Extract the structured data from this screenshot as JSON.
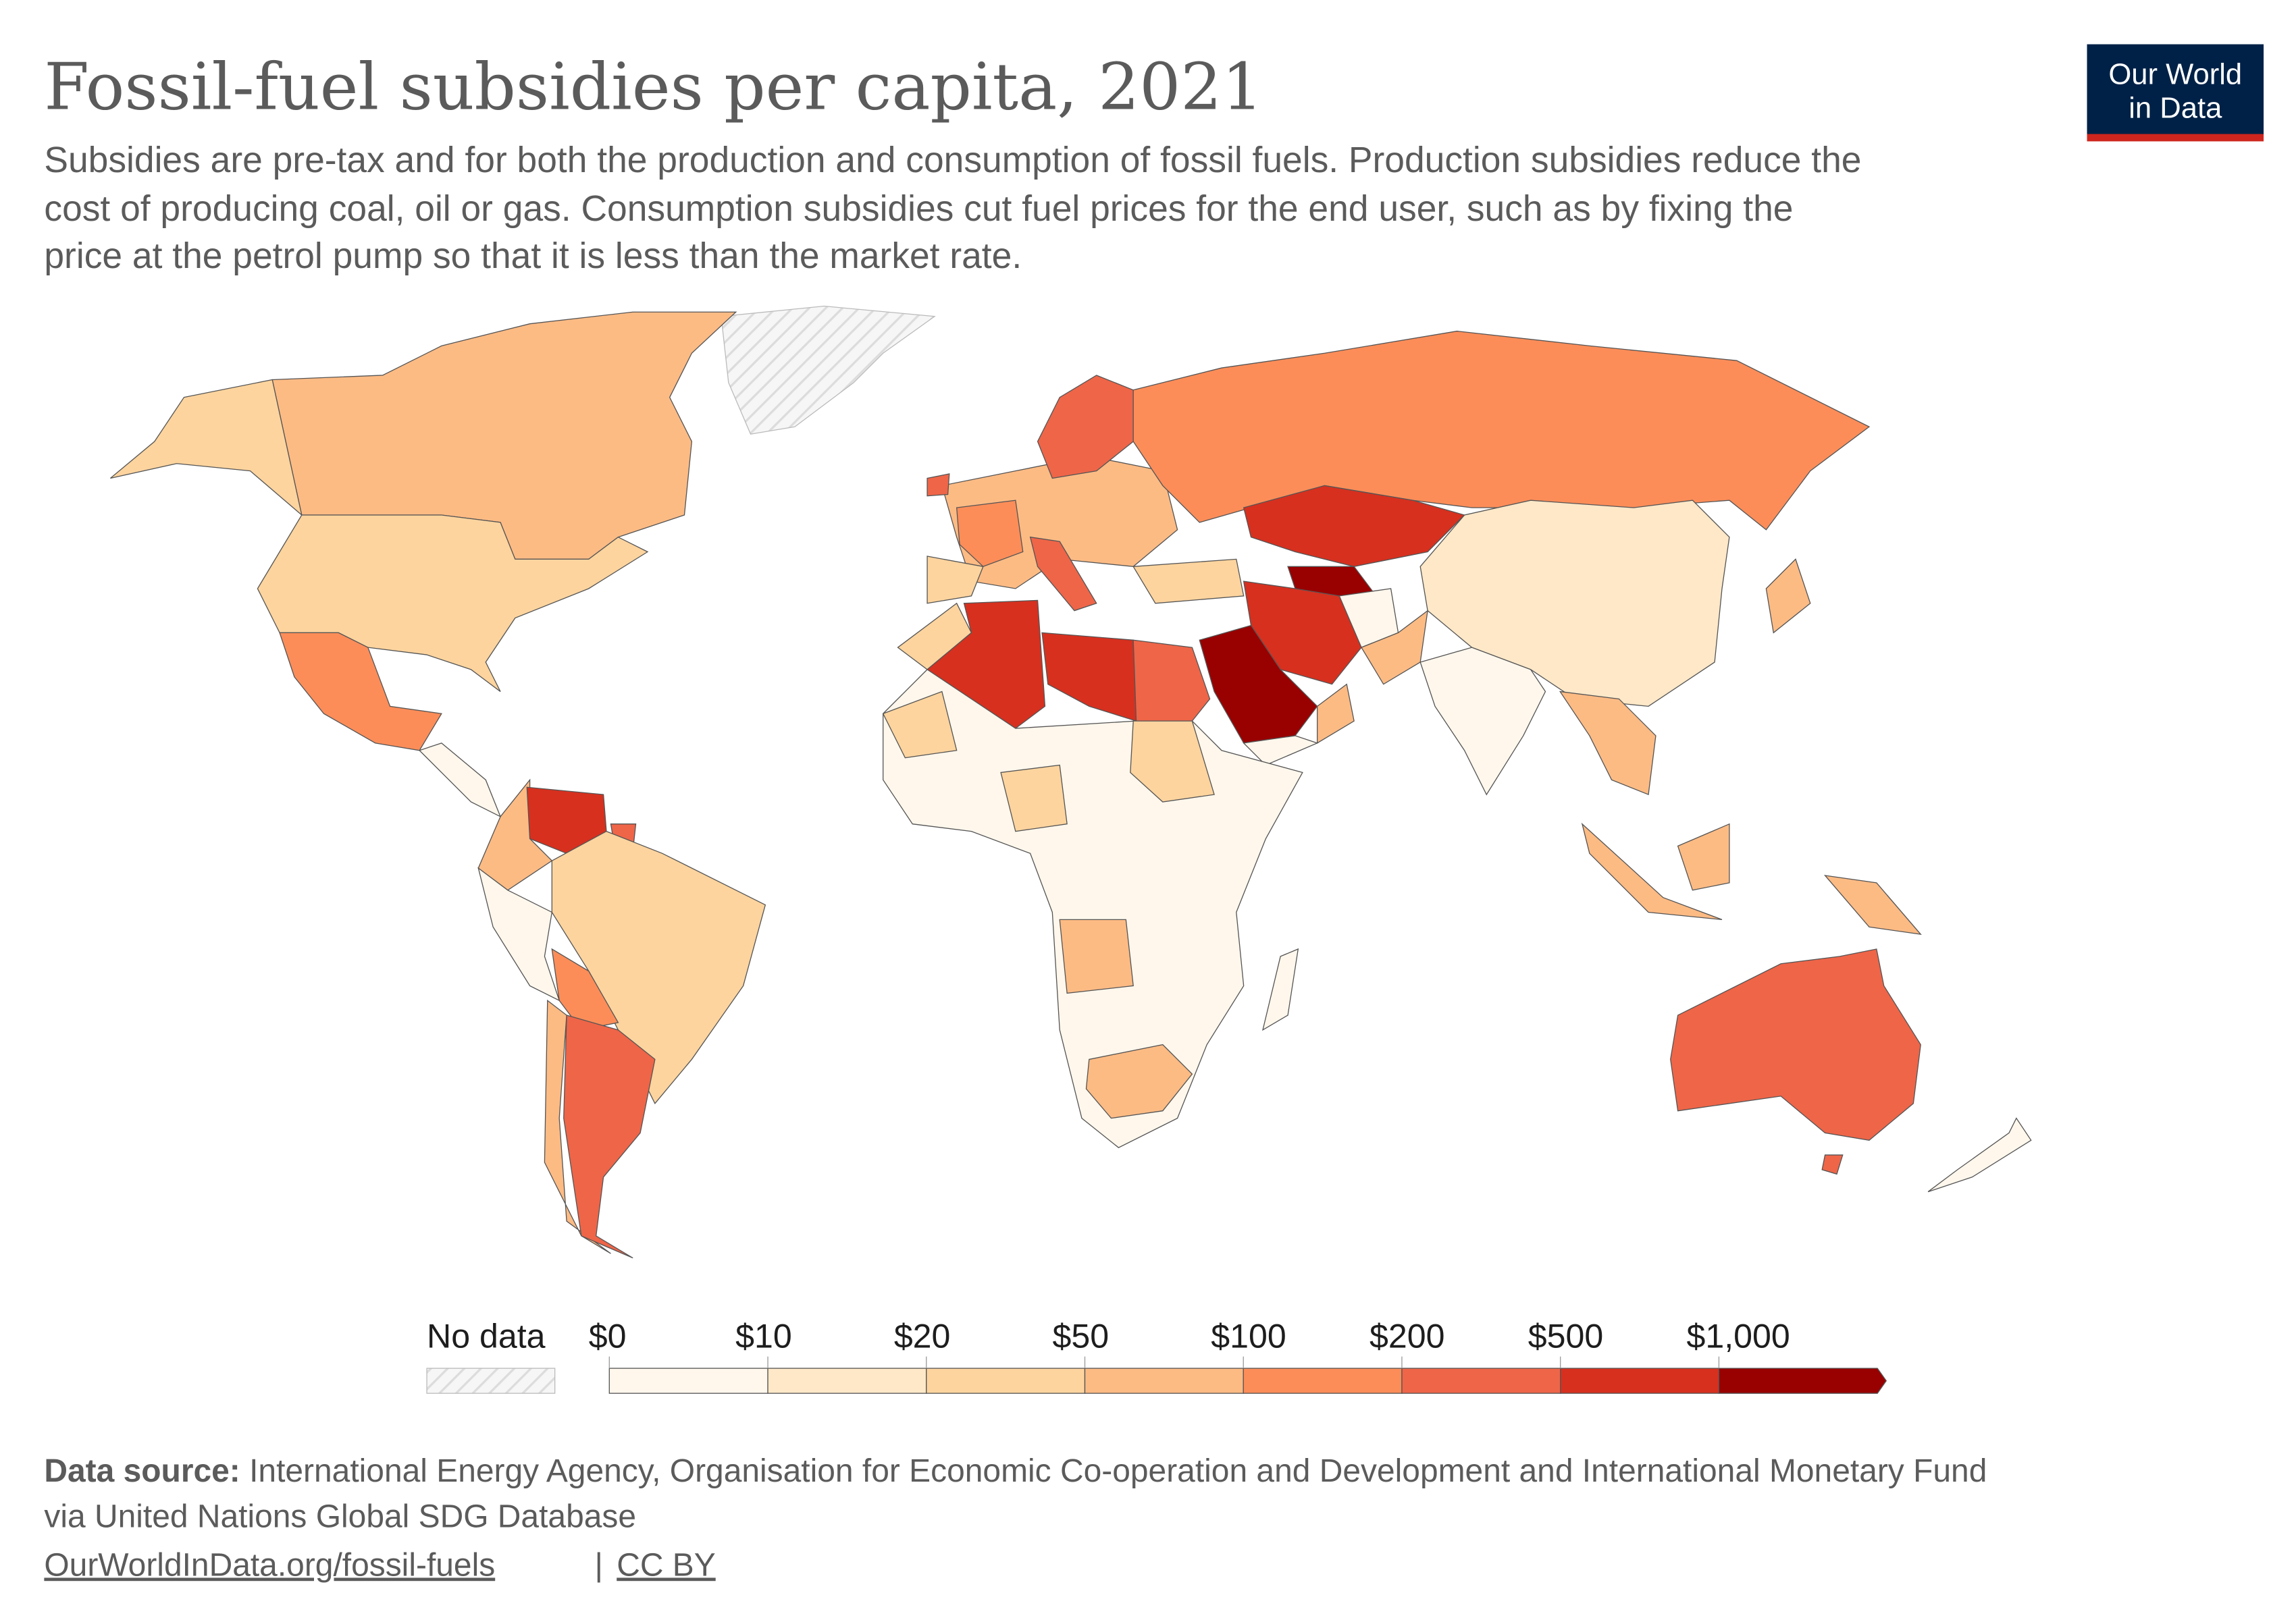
{
  "title": "Fossil-fuel subsidies per capita, 2021",
  "subtitle": [
    "Subsidies are pre-tax and for both the production and consumption of fossil fuels. Production subsidies reduce the",
    "cost of producing coal, oil or gas. Consumption subsidies cut fuel prices for the end user, such as by fixing the",
    "price at the petrol pump so that it is less than the market rate."
  ],
  "logo": {
    "line1": "Our World",
    "line2": "in Data",
    "bg": "#002147",
    "accent": "#ce261e"
  },
  "legend": {
    "no_data_label": "No data",
    "bins": [
      "$0",
      "$10",
      "$20",
      "$50",
      "$100",
      "$200",
      "$500",
      "$1,000"
    ],
    "colors": [
      "#fff7ec",
      "#fee8c8",
      "#fdd49e",
      "#fdbb84",
      "#fc8d59",
      "#ef6548",
      "#d7301f",
      "#990000"
    ]
  },
  "footer": {
    "source_label": "Data source:",
    "source_text": "International Energy Agency, Organisation for Economic Co-operation and Development and International Monetary Fund",
    "source_line2": "via United Nations Global SDG Database",
    "link": "OurWorldInData.org/fossil-fuels",
    "separator": "|",
    "license": "CC BY"
  }
}
